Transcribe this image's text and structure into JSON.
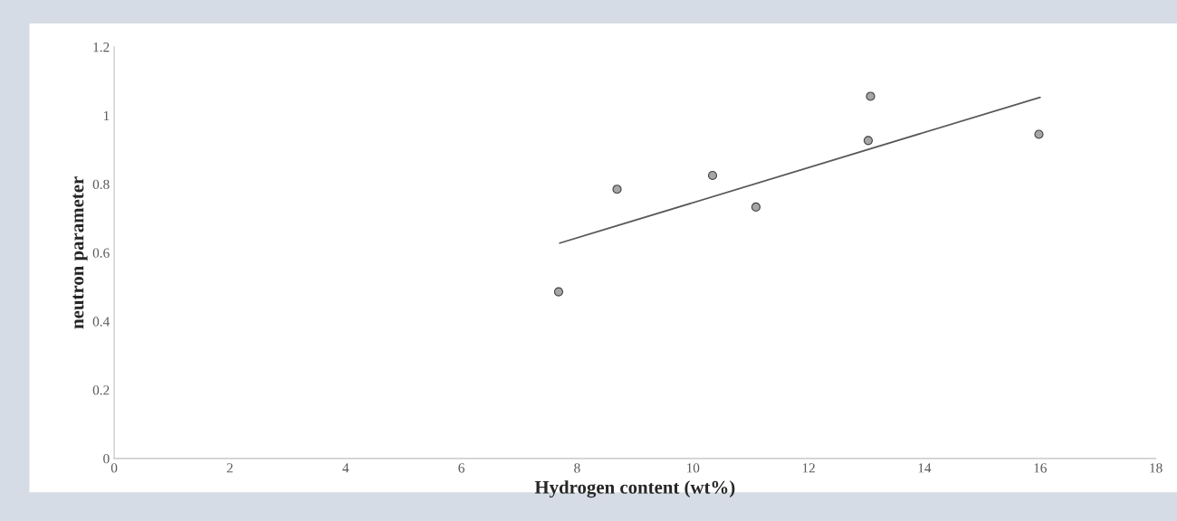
{
  "chart_data": {
    "type": "scatter",
    "xlabel": "Hydrogen content (wt%)",
    "ylabel": "neutron parameter",
    "series": [
      {
        "color": "#a6a6a6",
        "marker": "circle",
        "x": [
          7.68,
          8.69,
          10.34,
          11.09,
          13.03,
          13.07,
          15.98
        ],
        "values": [
          0.486,
          0.785,
          0.825,
          0.733,
          0.927,
          1.056,
          0.945
        ]
      },
      {
        "type": "line",
        "color": "#595959",
        "x": [
          7.7,
          16.0
        ],
        "values": [
          0.628,
          1.053
        ]
      }
    ],
    "xlim": [
      0,
      18
    ],
    "xticks": [
      0,
      2,
      4,
      6,
      8,
      10,
      12,
      14,
      16,
      18
    ],
    "ylim": [
      0,
      1.2
    ],
    "yticks": [
      0,
      0.2,
      0.4,
      0.6,
      0.8,
      1,
      1.2
    ],
    "grid": false
  }
}
